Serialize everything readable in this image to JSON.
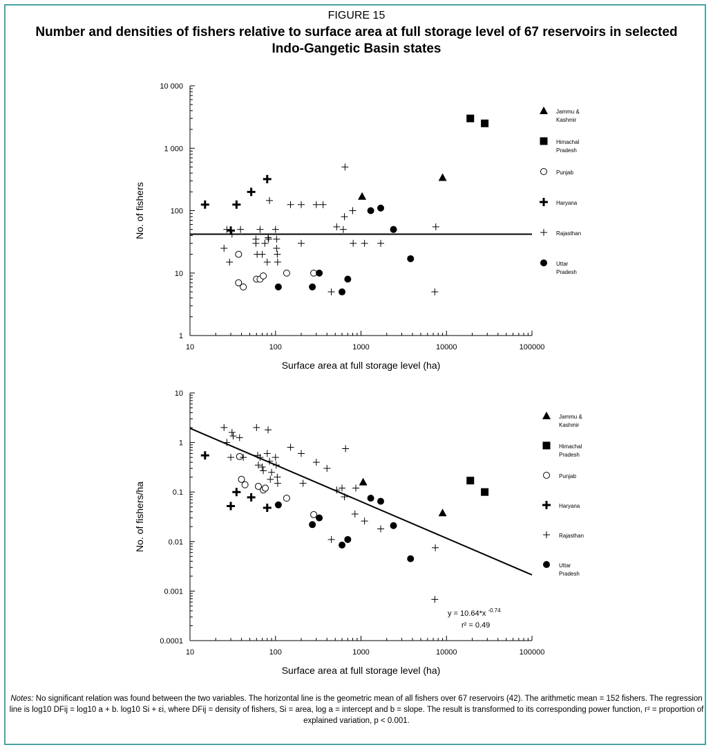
{
  "figure": {
    "label": "FIGURE 15",
    "title": "Number and densities of fishers relative to surface area at full storage level of 67 reservoirs in selected Indo-Gangetic Basin states"
  },
  "notes": {
    "prefix": "Notes:",
    "text": "No significant relation was found between the two variables. The horizontal line is the geometric mean of all fishers over 67 reservoirs (42). The arithmetic mean = 152 fishers. The regression line is log10 DFij = log10 a + b. log10 Si + εi, where DFij = density of fishers, Si = area, log a = intercept and b = slope. The result is transformed to its corresponding power function, r² = proportion of explained variation, p < 0.001."
  },
  "chart_data": [
    {
      "type": "scatter",
      "xlabel": "Surface area at full storage level (ha)",
      "ylabel": "No. of fishers",
      "xscale": "log",
      "yscale": "log",
      "xlim": [
        10,
        100000
      ],
      "ylim": [
        1,
        10000
      ],
      "xticks": [
        "10",
        "100",
        "1000",
        "10000",
        "100000"
      ],
      "yticks": [
        "1",
        "10",
        "100",
        "1 000",
        "10 000"
      ],
      "legend_position": "right",
      "reference_line": {
        "type": "horizontal",
        "y": 42
      },
      "series": [
        {
          "name": "Jammu & Kashmir",
          "marker": "triangle",
          "points": [
            [
              1030,
              170
            ],
            [
              9000,
              340
            ]
          ]
        },
        {
          "name": "Himachal Pradesh",
          "marker": "square",
          "points": [
            [
              19000,
              3000
            ],
            [
              28000,
              2500
            ]
          ]
        },
        {
          "name": "Punjab",
          "marker": "circle-open",
          "points": [
            [
              37,
              20
            ],
            [
              37,
              7
            ],
            [
              42,
              6
            ],
            [
              60,
              8
            ],
            [
              66,
              8
            ],
            [
              72,
              9
            ],
            [
              135,
              10
            ],
            [
              280,
              10
            ]
          ]
        },
        {
          "name": "Haryana",
          "marker": "plus-bold",
          "points": [
            [
              15,
              125
            ],
            [
              30,
              48
            ],
            [
              35,
              125
            ],
            [
              52,
              200
            ],
            [
              80,
              320
            ]
          ]
        },
        {
          "name": "Rajasthan",
          "marker": "plus",
          "points": [
            [
              25,
              25
            ],
            [
              27,
              50
            ],
            [
              29,
              15
            ],
            [
              31,
              42
            ],
            [
              39,
              50
            ],
            [
              59,
              35
            ],
            [
              59,
              30
            ],
            [
              61,
              20
            ],
            [
              66,
              50
            ],
            [
              70,
              20
            ],
            [
              75,
              30
            ],
            [
              80,
              15
            ],
            [
              82,
              37
            ],
            [
              83,
              35
            ],
            [
              85,
              145
            ],
            [
              100,
              50
            ],
            [
              103,
              25
            ],
            [
              103,
              35
            ],
            [
              105,
              20
            ],
            [
              106,
              15
            ],
            [
              150,
              125
            ],
            [
              200,
              125
            ],
            [
              200,
              30
            ],
            [
              300,
              125
            ],
            [
              360,
              125
            ],
            [
              450,
              5
            ],
            [
              520,
              55
            ],
            [
              620,
              50
            ],
            [
              640,
              80
            ],
            [
              650,
              500
            ],
            [
              800,
              100
            ],
            [
              810,
              30
            ],
            [
              1100,
              30
            ],
            [
              1700,
              30
            ],
            [
              7300,
              5
            ],
            [
              7500,
              55
            ]
          ]
        },
        {
          "name": "Uttar Pradesh",
          "marker": "circle-filled",
          "points": [
            [
              108,
              6
            ],
            [
              270,
              6
            ],
            [
              325,
              10
            ],
            [
              600,
              5
            ],
            [
              700,
              8
            ],
            [
              1300,
              100
            ],
            [
              1700,
              110
            ],
            [
              2400,
              50
            ],
            [
              3800,
              17
            ]
          ]
        }
      ]
    },
    {
      "type": "scatter",
      "xlabel": "Surface area at full storage level (ha)",
      "ylabel": "No. of fishers/ha",
      "xscale": "log",
      "yscale": "log",
      "xlim": [
        10,
        100000
      ],
      "ylim": [
        0.0001,
        10
      ],
      "xticks": [
        "10",
        "100",
        "1000",
        "10000",
        "100000"
      ],
      "yticks": [
        "0.0001",
        "0.001",
        "0.01",
        "0.1",
        "1",
        "10"
      ],
      "legend_position": "right",
      "regression": {
        "a": 10.64,
        "b": -0.74,
        "r2": 0.49,
        "equation": "y = 10.64*x",
        "exponent": "-0.74",
        "r2_label": "r² = 0.49"
      },
      "series": [
        {
          "name": "Jammu & Kashmir",
          "marker": "triangle",
          "points": [
            [
              1060,
              0.16
            ],
            [
              9000,
              0.038
            ]
          ]
        },
        {
          "name": "Himachal Pradesh",
          "marker": "square",
          "points": [
            [
              19000,
              0.17
            ],
            [
              28000,
              0.1
            ]
          ]
        },
        {
          "name": "Punjab",
          "marker": "circle-open",
          "points": [
            [
              38,
              0.52
            ],
            [
              40,
              0.18
            ],
            [
              44,
              0.14
            ],
            [
              63,
              0.13
            ],
            [
              72,
              0.11
            ],
            [
              76,
              0.12
            ],
            [
              135,
              0.075
            ],
            [
              280,
              0.035
            ]
          ]
        },
        {
          "name": "Haryana",
          "marker": "plus-bold",
          "points": [
            [
              15,
              0.55
            ],
            [
              30,
              0.052
            ],
            [
              35,
              0.1
            ],
            [
              52,
              0.078
            ],
            [
              80,
              0.048
            ]
          ]
        },
        {
          "name": "Rajasthan",
          "marker": "plus",
          "points": [
            [
              25,
              2.0
            ],
            [
              27,
              1.0
            ],
            [
              30,
              0.5
            ],
            [
              31,
              1.6
            ],
            [
              32,
              1.35
            ],
            [
              38,
              1.25
            ],
            [
              42,
              0.5
            ],
            [
              60,
              2.0
            ],
            [
              62,
              0.55
            ],
            [
              63,
              0.35
            ],
            [
              66,
              0.5
            ],
            [
              70,
              0.32
            ],
            [
              72,
              0.27
            ],
            [
              80,
              0.6
            ],
            [
              82,
              1.8
            ],
            [
              85,
              0.42
            ],
            [
              87,
              0.18
            ],
            [
              90,
              0.25
            ],
            [
              100,
              0.5
            ],
            [
              102,
              0.35
            ],
            [
              105,
              0.2
            ],
            [
              106,
              0.15
            ],
            [
              150,
              0.8
            ],
            [
              200,
              0.6
            ],
            [
              210,
              0.15
            ],
            [
              300,
              0.4
            ],
            [
              400,
              0.3
            ],
            [
              450,
              0.011
            ],
            [
              520,
              0.11
            ],
            [
              600,
              0.12
            ],
            [
              640,
              0.08
            ],
            [
              660,
              0.75
            ],
            [
              850,
              0.036
            ],
            [
              870,
              0.12
            ],
            [
              1100,
              0.026
            ],
            [
              1700,
              0.018
            ],
            [
              7300,
              0.00068
            ],
            [
              7400,
              0.0075
            ]
          ]
        },
        {
          "name": "Uttar Pradesh",
          "marker": "circle-filled",
          "points": [
            [
              108,
              0.055
            ],
            [
              270,
              0.022
            ],
            [
              325,
              0.03
            ],
            [
              600,
              0.0085
            ],
            [
              700,
              0.011
            ],
            [
              1300,
              0.075
            ],
            [
              1700,
              0.065
            ],
            [
              2400,
              0.021
            ],
            [
              3800,
              0.0045
            ]
          ]
        }
      ]
    }
  ]
}
